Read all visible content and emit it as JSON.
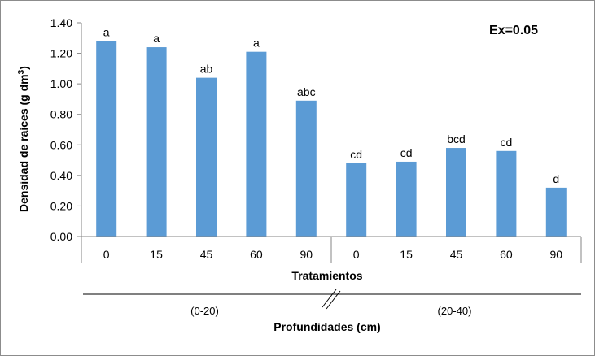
{
  "chart_data": {
    "type": "bar",
    "categories": [
      "0",
      "15",
      "45",
      "60",
      "90",
      "0",
      "15",
      "45",
      "60",
      "90"
    ],
    "values": [
      1.28,
      1.24,
      1.04,
      1.21,
      0.89,
      0.48,
      0.49,
      0.58,
      0.56,
      0.32
    ],
    "data_labels": [
      "a",
      "a",
      "ab",
      "a",
      "abc",
      "cd",
      "cd",
      "bcd",
      "cd",
      "d"
    ],
    "groups": [
      {
        "label": "(0-20)",
        "indices": [
          0,
          1,
          2,
          3,
          4
        ]
      },
      {
        "label": "(20-40)",
        "indices": [
          5,
          6,
          7,
          8,
          9
        ]
      }
    ],
    "ylabel_main": "Densidad de raíces (g dm",
    "ylabel_sup": "3",
    "ylabel_end": ")",
    "xlabel": "Tratamientos",
    "group_axis_label": "Profundidades (cm)",
    "annotation": "Ex=0.05",
    "yticks": [
      "0.00",
      "0.20",
      "0.40",
      "0.60",
      "0.80",
      "1.00",
      "1.20",
      "1.40"
    ],
    "ylim": [
      0,
      1.4
    ],
    "grid": false,
    "bar_color": "#5b9bd5"
  }
}
